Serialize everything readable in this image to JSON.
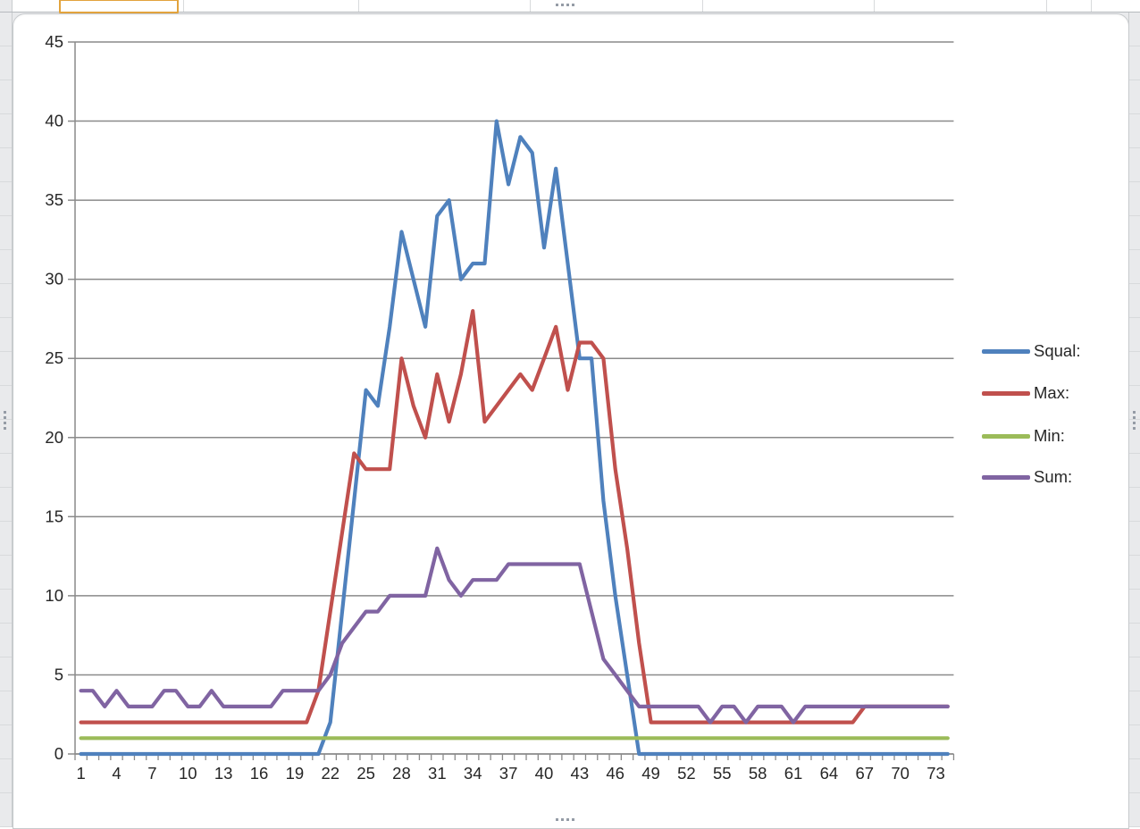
{
  "app": {
    "context": "spreadsheet-with-embedded-chart",
    "selected_cell_border_color": "#E2A33C",
    "chart_selected": true
  },
  "chart_data": {
    "type": "line",
    "title": "",
    "xlabel": "",
    "ylabel": "",
    "ylim": [
      0,
      45
    ],
    "grid": "horizontal",
    "legend_position": "right",
    "axis_color": "#8A8A8A",
    "label_color": "#262626",
    "y_ticks": [
      0,
      5,
      10,
      15,
      20,
      25,
      30,
      35,
      40,
      45
    ],
    "x_tick_labels": [
      1,
      4,
      7,
      10,
      13,
      16,
      19,
      22,
      25,
      28,
      31,
      34,
      37,
      40,
      43,
      46,
      49,
      52,
      55,
      58,
      61,
      64,
      67,
      70,
      73
    ],
    "x_count": 74,
    "series": [
      {
        "name": "Squal:",
        "color": "#4F81BD",
        "values": [
          0,
          0,
          0,
          0,
          0,
          0,
          0,
          0,
          0,
          0,
          0,
          0,
          0,
          0,
          0,
          0,
          0,
          0,
          0,
          0,
          0,
          2,
          9,
          16,
          23,
          22,
          27,
          33,
          30,
          27,
          34,
          35,
          30,
          31,
          31,
          40,
          36,
          39,
          38,
          32,
          37,
          31,
          25,
          25,
          16,
          10,
          5,
          0,
          0,
          0,
          0,
          0,
          0,
          0,
          0,
          0,
          0,
          0,
          0,
          0,
          0,
          0,
          0,
          0,
          0,
          0,
          0,
          0,
          0,
          0,
          0,
          0,
          0,
          0
        ]
      },
      {
        "name": "Max:",
        "color": "#C0504D",
        "values": [
          2,
          2,
          2,
          2,
          2,
          2,
          2,
          2,
          2,
          2,
          2,
          2,
          2,
          2,
          2,
          2,
          2,
          2,
          2,
          2,
          4,
          9,
          14,
          19,
          18,
          18,
          18,
          25,
          22,
          20,
          24,
          21,
          24,
          28,
          21,
          22,
          23,
          24,
          23,
          25,
          27,
          23,
          26,
          26,
          25,
          18,
          13,
          7,
          2,
          2,
          2,
          2,
          2,
          2,
          2,
          2,
          2,
          2,
          2,
          2,
          2,
          2,
          2,
          2,
          2,
          2,
          3,
          3,
          3,
          3,
          3,
          3,
          3,
          3
        ]
      },
      {
        "name": "Min:",
        "color": "#9BBB59",
        "values": [
          1,
          1,
          1,
          1,
          1,
          1,
          1,
          1,
          1,
          1,
          1,
          1,
          1,
          1,
          1,
          1,
          1,
          1,
          1,
          1,
          1,
          1,
          1,
          1,
          1,
          1,
          1,
          1,
          1,
          1,
          1,
          1,
          1,
          1,
          1,
          1,
          1,
          1,
          1,
          1,
          1,
          1,
          1,
          1,
          1,
          1,
          1,
          1,
          1,
          1,
          1,
          1,
          1,
          1,
          1,
          1,
          1,
          1,
          1,
          1,
          1,
          1,
          1,
          1,
          1,
          1,
          1,
          1,
          1,
          1,
          1,
          1,
          1,
          1
        ]
      },
      {
        "name": "Sum:",
        "color": "#8064A2",
        "values": [
          4,
          4,
          3,
          4,
          3,
          3,
          3,
          4,
          4,
          3,
          3,
          4,
          3,
          3,
          3,
          3,
          3,
          4,
          4,
          4,
          4,
          5,
          7,
          8,
          9,
          9,
          10,
          10,
          10,
          10,
          13,
          11,
          10,
          11,
          11,
          11,
          12,
          12,
          12,
          12,
          12,
          12,
          12,
          9,
          6,
          5,
          4,
          3,
          3,
          3,
          3,
          3,
          3,
          2,
          3,
          3,
          2,
          3,
          3,
          3,
          2,
          3,
          3,
          3,
          3,
          3,
          3,
          3,
          3,
          3,
          3,
          3,
          3,
          3
        ]
      }
    ]
  }
}
